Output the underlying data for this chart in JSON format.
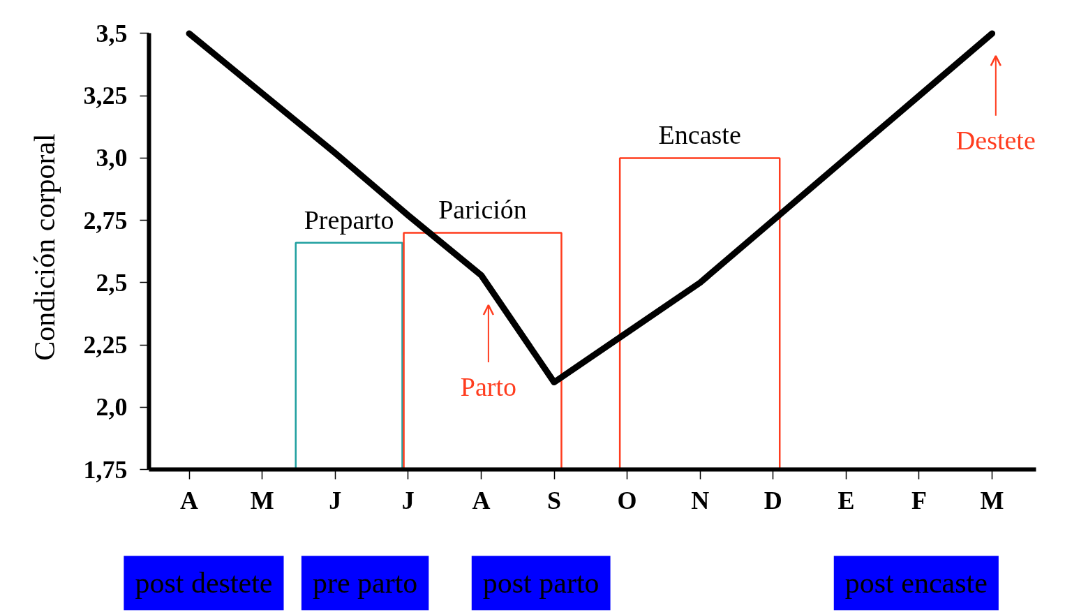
{
  "chart_data": {
    "type": "line",
    "ylabel": "Condición corporal",
    "categories": [
      "A",
      "M",
      "J",
      "J",
      "A",
      "S",
      "O",
      "N",
      "D",
      "E",
      "F",
      "M"
    ],
    "series": [
      {
        "color": "#000000",
        "values": [
          3.5,
          3.26,
          3.02,
          2.77,
          2.53,
          2.1,
          2.3,
          2.5,
          2.75,
          3.0,
          3.25,
          3.5
        ]
      }
    ],
    "ylim": [
      1.75,
      3.5
    ],
    "yticks": [
      {
        "value": 1.75,
        "label": "1,75"
      },
      {
        "value": 2.0,
        "label": "2,0"
      },
      {
        "value": 2.25,
        "label": "2,25"
      },
      {
        "value": 2.5,
        "label": "2,5"
      },
      {
        "value": 2.75,
        "label": "2,75"
      },
      {
        "value": 3.0,
        "label": "3,0"
      },
      {
        "value": 3.25,
        "label": "3,25"
      },
      {
        "value": 3.5,
        "label": "3,5"
      }
    ],
    "annotations": [
      "Preparto",
      "Parición",
      "Encaste",
      "Parto",
      "Destete",
      "post destete",
      "pre parto",
      "post parto",
      "post encaste"
    ]
  }
}
